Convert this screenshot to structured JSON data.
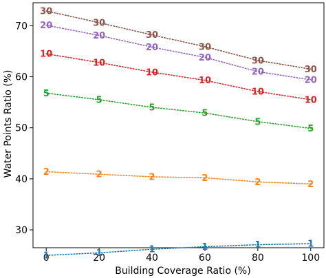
{
  "chart_data": {
    "type": "line",
    "title": "",
    "xlabel": "Building Coverage Ratio (%)",
    "ylabel": "Water Points Ratio (%)",
    "x": [
      0,
      20,
      40,
      60,
      80,
      100
    ],
    "xlim": [
      -5,
      105
    ],
    "ylim": [
      26.5,
      74.5
    ],
    "xticks": [
      0,
      20,
      40,
      60,
      80,
      100
    ],
    "yticks": [
      30,
      40,
      50,
      60,
      70
    ],
    "grid": false,
    "line_style": "dotted",
    "series": [
      {
        "name": "1",
        "color": "#1f77b4",
        "values": [
          25.0,
          25.5,
          26.2,
          26.7,
          27.1,
          27.3
        ]
      },
      {
        "name": "2",
        "color": "#ff7f0e",
        "values": [
          41.4,
          40.9,
          40.4,
          40.2,
          39.4,
          39.0
        ]
      },
      {
        "name": "5",
        "color": "#2ca02c",
        "values": [
          56.8,
          55.5,
          54.0,
          52.9,
          51.2,
          49.9
        ]
      },
      {
        "name": "10",
        "color": "#d62728",
        "values": [
          64.5,
          62.8,
          60.9,
          59.3,
          57.1,
          55.5
        ]
      },
      {
        "name": "20",
        "color": "#9467bd",
        "values": [
          70.1,
          68.1,
          65.8,
          63.8,
          61.0,
          59.4
        ]
      },
      {
        "name": "30",
        "color": "#8c564b",
        "values": [
          72.9,
          70.6,
          68.2,
          65.9,
          63.2,
          61.5
        ]
      }
    ]
  }
}
